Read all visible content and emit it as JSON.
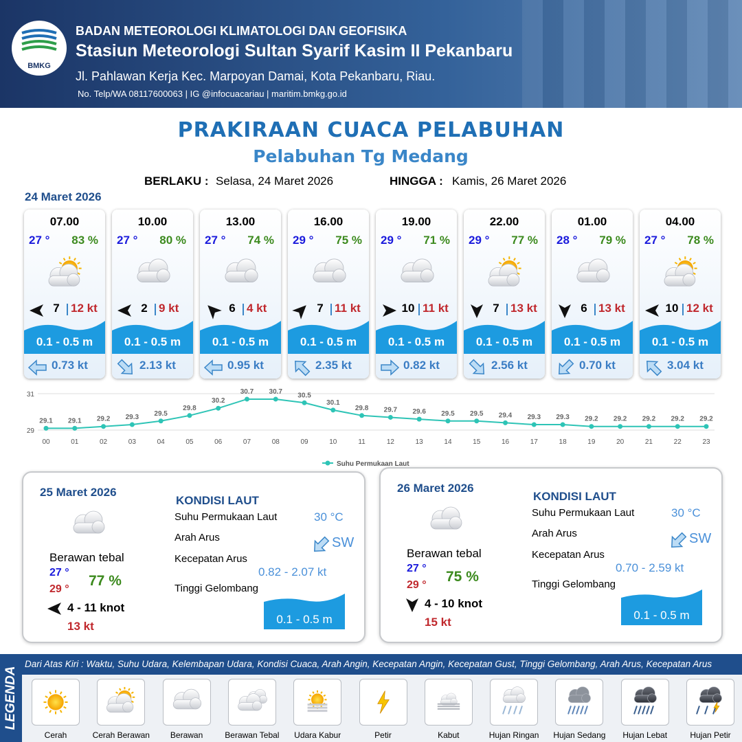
{
  "header": {
    "logo": "BMKG",
    "org": "BADAN METEOROLOGI KLIMATOLOGI DAN GEOFISIKA",
    "station": "Stasiun Meteorologi Sultan Syarif Kasim II Pekanbaru",
    "address": "Jl. Pahlawan Kerja Kec. Marpoyan Damai, Kota Pekanbaru, Riau.",
    "contact": "No. Telp/WA 08117600063 | IG @infocuacariau | maritim.bmkg.go.id"
  },
  "title": "PRAKIRAAN CUACA PELABUHAN",
  "subtitle": "Pelabuhan Tg Medang",
  "validity": {
    "from_label": "BERLAKU :",
    "from": "Selasa, 24 Maret 2026",
    "to_label": "HINGGA :",
    "to": "Kamis, 26 Maret 2026"
  },
  "day1_date": "24 Maret 2026",
  "forecasts": [
    {
      "time": "07.00",
      "temp": "27 °",
      "rh": "83 %",
      "wind": "7",
      "gust": "12 kt",
      "wave": "0.1 - 0.5 m",
      "current": "0.73 kt"
    },
    {
      "time": "10.00",
      "temp": "27 °",
      "rh": "80 %",
      "wind": "2",
      "gust": "9 kt",
      "wave": "0.1 - 0.5 m",
      "current": "2.13 kt"
    },
    {
      "time": "13.00",
      "temp": "27 °",
      "rh": "74 %",
      "wind": "6",
      "gust": "4 kt",
      "wave": "0.1 - 0.5 m",
      "current": "0.95 kt"
    },
    {
      "time": "16.00",
      "temp": "29 °",
      "rh": "75 %",
      "wind": "7",
      "gust": "11 kt",
      "wave": "0.1 - 0.5 m",
      "current": "2.35 kt"
    },
    {
      "time": "19.00",
      "temp": "29 °",
      "rh": "71 %",
      "wind": "10",
      "gust": "11 kt",
      "wave": "0.1 - 0.5 m",
      "current": "0.82 kt"
    },
    {
      "time": "22.00",
      "temp": "29 °",
      "rh": "77 %",
      "wind": "7",
      "gust": "13 kt",
      "wave": "0.1 - 0.5 m",
      "current": "2.56 kt"
    },
    {
      "time": "01.00",
      "temp": "28 °",
      "rh": "79 %",
      "wind": "6",
      "gust": "13 kt",
      "wave": "0.1 - 0.5 m",
      "current": "0.70 kt"
    },
    {
      "time": "04.00",
      "temp": "27 °",
      "rh": "78 %",
      "wind": "10",
      "gust": "12 kt",
      "wave": "0.1 - 0.5 m",
      "current": "3.04 kt"
    }
  ],
  "chart_data": {
    "type": "line",
    "categories": [
      "00",
      "01",
      "02",
      "03",
      "04",
      "05",
      "06",
      "07",
      "08",
      "09",
      "10",
      "11",
      "12",
      "13",
      "14",
      "15",
      "16",
      "17",
      "18",
      "19",
      "20",
      "21",
      "22",
      "23"
    ],
    "series": [
      {
        "name": "Suhu Permukaan Laut",
        "color": "#2ec4b6",
        "values": [
          29.1,
          29.1,
          29.2,
          29.3,
          29.5,
          29.8,
          30.2,
          30.7,
          30.7,
          30.5,
          30.1,
          29.8,
          29.7,
          29.6,
          29.5,
          29.5,
          29.4,
          29.3,
          29.3,
          29.2,
          29.2,
          29.2,
          29.2,
          29.2
        ]
      }
    ],
    "ylim": [
      29,
      31
    ],
    "yticks": [
      29,
      31
    ],
    "grid": true,
    "legend": "bottom"
  },
  "days": [
    {
      "date": "25 Maret 2026",
      "condition": "Berawan tebal",
      "temp_min": "27 °",
      "temp_max": "29 °",
      "rh": "77 %",
      "wind": "4  - 11 knot",
      "gust": "13 kt",
      "sea_heading": "KONDISI LAUT",
      "sst_label": "Suhu Permukaan Laut",
      "sst": "30 °C",
      "dir_label": "Arah Arus",
      "dir": "SW",
      "speed_label": "Kecepatan Arus",
      "speed": "0.82  - 2.07 kt",
      "wave_label": "Tinggi Gelombang",
      "wave": "0.1 - 0.5 m"
    },
    {
      "date": "26 Maret 2026",
      "condition": "Berawan tebal",
      "temp_min": "27 °",
      "temp_max": "29 °",
      "rh": "75 %",
      "wind": "4  - 10 knot",
      "gust": "15 kt",
      "sea_heading": "KONDISI LAUT",
      "sst_label": "Suhu Permukaan Laut",
      "sst": "30 °C",
      "dir_label": "Arah Arus",
      "dir": "SW",
      "speed_label": "Kecepatan Arus",
      "speed": "0.70 - 2.59 kt",
      "wave_label": "Tinggi Gelombang",
      "wave": "0.1 - 0.5 m"
    }
  ],
  "legend": {
    "heading": "LEGENDA",
    "description": "Dari Atas Kiri : Waktu, Suhu Udara, Kelembapan Udara, Kondisi Cuaca, Arah Angin, Kecepatan Angin, Kecepatan Gust, Tinggi Gelombang, Arah Arus, Kecepatan Arus",
    "items": [
      "Cerah",
      "Cerah Berawan",
      "Berawan",
      "Berawan Tebal",
      "Udara Kabur",
      "Petir",
      "Kabut",
      "Hujan Ringan",
      "Hujan Sedang",
      "Hujan Lebat",
      "Hujan Petir"
    ]
  }
}
